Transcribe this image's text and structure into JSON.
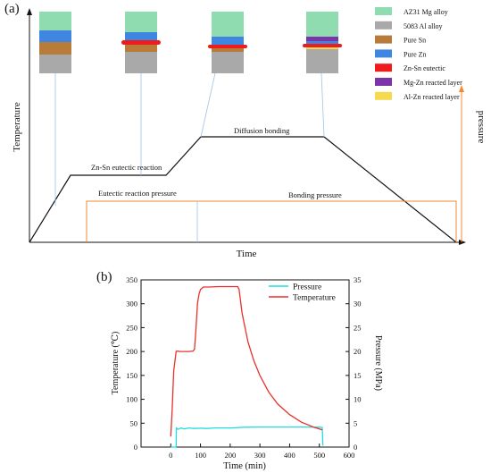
{
  "panel_a": {
    "label": "(a)",
    "ylabel": "Temperature",
    "y2label": "pressure",
    "xlabel": "Time",
    "annotations": {
      "eutectic_reaction": "Zn-Sn eutectic reaction",
      "diffusion_bonding": "Diffusion bonding",
      "eutectic_pressure": "Eutectic reaction pressure",
      "bonding_pressure": "Bonding pressure"
    },
    "legend": [
      {
        "label": "AZ31 Mg alloy",
        "color": "#8fdcb0"
      },
      {
        "label": "5083 Al alloy",
        "color": "#a9a9a9"
      },
      {
        "label": "Pure Sn",
        "color": "#b87b3a"
      },
      {
        "label": "Pure Zn",
        "color": "#3f86e0"
      },
      {
        "label": "Zn-Sn eutectic",
        "color": "#ee1c1c"
      },
      {
        "label": "Mg-Zn reacted layer",
        "color": "#7b35a8"
      },
      {
        "label": "Al-Zn reacted layer",
        "color": "#f5d94e"
      }
    ],
    "colors": {
      "temperature_line": "#111111",
      "pressure_line": "#f28a30",
      "connector": "#9ec3e6"
    }
  },
  "chart_data": {
    "type": "line",
    "label": "(b)",
    "xlabel": "Time (min)",
    "ylabel": "Temperature (℃)",
    "y2label": "Pressure (MPa)",
    "xlim": [
      -100,
      600
    ],
    "ylim": [
      0,
      350
    ],
    "y2lim": [
      0,
      35
    ],
    "xticks": [
      0,
      100,
      200,
      300,
      400,
      500,
      600
    ],
    "yticks": [
      0,
      50,
      100,
      150,
      200,
      250,
      300,
      350
    ],
    "y2ticks": [
      0,
      5,
      10,
      15,
      20,
      25,
      30,
      35
    ],
    "legend_position": "top-right",
    "series": [
      {
        "name": "Pressure",
        "axis": "right",
        "color": "#22dde0",
        "x": [
          0,
          18,
          19,
          25,
          35,
          45,
          60,
          80,
          100,
          120,
          150,
          200,
          250,
          300,
          350,
          400,
          450,
          500,
          510,
          511,
          512
        ],
        "y": [
          0,
          0,
          4.0,
          3.7,
          4.0,
          3.8,
          4.0,
          3.9,
          3.95,
          3.9,
          4.0,
          4.0,
          4.15,
          4.2,
          4.2,
          4.2,
          4.2,
          4.15,
          4.1,
          2.0,
          0.3
        ]
      },
      {
        "name": "Temperature",
        "axis": "left",
        "color": "#e8312c",
        "x": [
          0,
          5,
          10,
          15,
          18,
          22,
          30,
          40,
          60,
          75,
          80,
          85,
          90,
          95,
          100,
          110,
          130,
          160,
          200,
          225,
          230,
          240,
          260,
          280,
          300,
          330,
          360,
          400,
          440,
          480,
          510
        ],
        "y": [
          22,
          80,
          160,
          185,
          200,
          201,
          200,
          200,
          200,
          201,
          205,
          250,
          300,
          320,
          330,
          335,
          335,
          336,
          336,
          336,
          330,
          280,
          220,
          180,
          150,
          115,
          90,
          68,
          52,
          42,
          36
        ]
      }
    ]
  }
}
